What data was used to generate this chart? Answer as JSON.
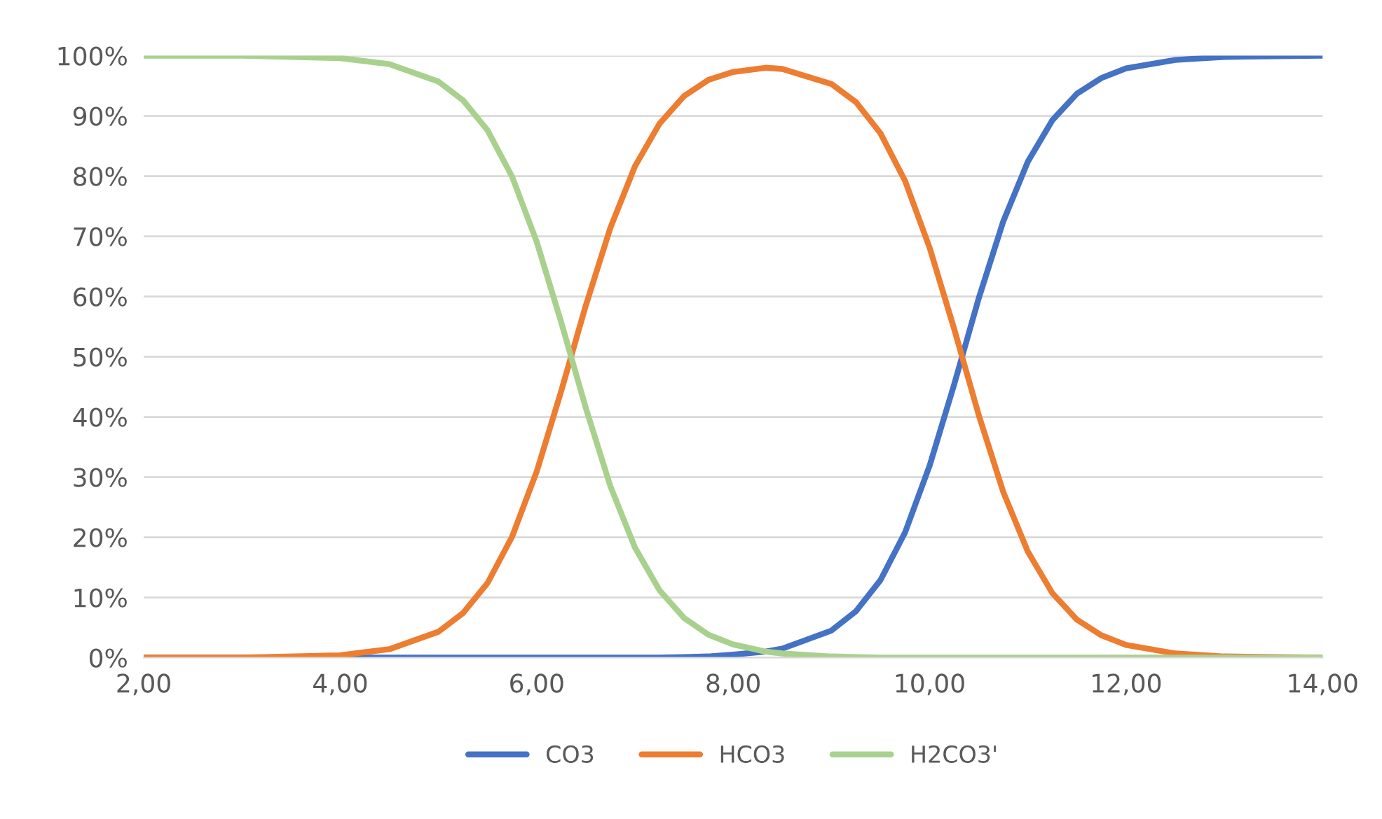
{
  "chart_data": {
    "type": "line",
    "x": [
      2,
      3,
      4,
      4.5,
      5,
      5.25,
      5.5,
      5.75,
      6,
      6.25,
      6.5,
      6.75,
      7,
      7.25,
      7.5,
      7.75,
      8,
      8.33,
      8.5,
      9,
      9.25,
      9.5,
      9.75,
      10,
      10.25,
      10.5,
      10.75,
      11,
      11.25,
      11.5,
      11.75,
      12,
      12.5,
      13,
      14
    ],
    "series": [
      {
        "name": "CO3",
        "color": "#4472c4",
        "values": [
          0,
          0,
          0,
          0,
          0,
          0,
          0,
          0,
          0,
          0,
          0,
          0,
          0,
          0,
          0.1,
          0.2,
          0.5,
          1.0,
          1.5,
          4.5,
          7.7,
          12.9,
          20.8,
          31.9,
          45.4,
          59.7,
          72.5,
          82.4,
          89.3,
          93.7,
          96.3,
          97.9,
          99.3,
          99.8,
          100
        ]
      },
      {
        "name": "HCO3",
        "color": "#ed7d31",
        "values": [
          0,
          0,
          0.4,
          1.4,
          4.3,
          7.4,
          12.4,
          20.1,
          30.9,
          44.3,
          58.5,
          71.4,
          81.6,
          88.7,
          93.3,
          96.0,
          97.3,
          98.0,
          97.8,
          95.3,
          92.3,
          87.1,
          79.2,
          68.1,
          54.6,
          40.3,
          27.5,
          17.6,
          10.7,
          6.3,
          3.7,
          2.1,
          0.7,
          0.2,
          0
        ]
      },
      {
        "name": "H2CO3'",
        "color": "#a9d18e",
        "values": [
          100,
          100,
          99.6,
          98.6,
          95.7,
          92.6,
          87.6,
          79.9,
          69.1,
          55.7,
          41.5,
          28.5,
          18.3,
          11.2,
          6.6,
          3.8,
          2.2,
          1.0,
          0.7,
          0.2,
          0.1,
          0,
          0,
          0,
          0,
          0,
          0,
          0,
          0,
          0,
          0,
          0,
          0,
          0,
          0
        ]
      }
    ],
    "xlim": [
      2,
      14
    ],
    "xticks": [
      {
        "value": 2,
        "label": "2,00"
      },
      {
        "value": 4,
        "label": "4,00"
      },
      {
        "value": 6,
        "label": "6,00"
      },
      {
        "value": 8,
        "label": "8,00"
      },
      {
        "value": 10,
        "label": "10,00"
      },
      {
        "value": 12,
        "label": "12,00"
      },
      {
        "value": 14,
        "label": "14,00"
      }
    ],
    "ylim": [
      0,
      100
    ],
    "yticks": [
      {
        "value": 0,
        "label": "0%"
      },
      {
        "value": 10,
        "label": "10%"
      },
      {
        "value": 20,
        "label": "20%"
      },
      {
        "value": 30,
        "label": "30%"
      },
      {
        "value": 40,
        "label": "40%"
      },
      {
        "value": 50,
        "label": "50%"
      },
      {
        "value": 60,
        "label": "60%"
      },
      {
        "value": 70,
        "label": "70%"
      },
      {
        "value": 80,
        "label": "80%"
      },
      {
        "value": 90,
        "label": "90%"
      },
      {
        "value": 100,
        "label": "100%"
      }
    ],
    "grid": "y",
    "legend": "bottom",
    "marker": "none",
    "line_style": "solid"
  }
}
